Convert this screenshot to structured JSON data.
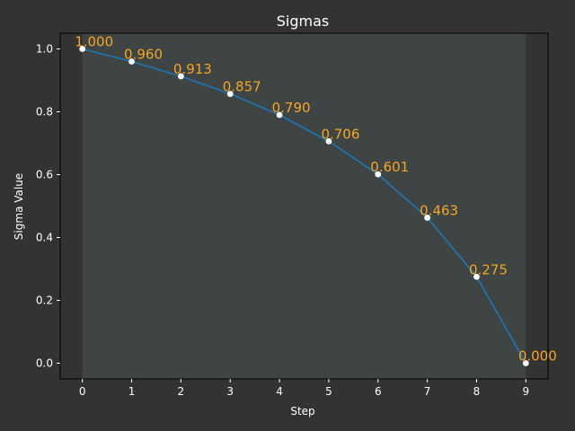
{
  "chart_data": {
    "type": "line",
    "title": "Sigmas",
    "xlabel": "Step",
    "ylabel": "Sigma Value",
    "x": [
      0,
      1,
      2,
      3,
      4,
      5,
      6,
      7,
      8,
      9
    ],
    "x_ticks": [
      "0",
      "1",
      "2",
      "3",
      "4",
      "5",
      "6",
      "7",
      "8",
      "9"
    ],
    "y_ticks": [
      "0.0",
      "0.2",
      "0.4",
      "0.6",
      "0.8",
      "1.0"
    ],
    "y_tick_values": [
      0,
      0.2,
      0.4,
      0.6,
      0.8,
      1.0
    ],
    "series": [
      {
        "values": [
          1.0,
          0.96,
          0.913,
          0.857,
          0.79,
          0.706,
          0.601,
          0.463,
          0.275,
          0.0
        ],
        "labels": [
          "1.000",
          "0.960",
          "0.913",
          "0.857",
          "0.790",
          "0.706",
          "0.601",
          "0.463",
          "0.275",
          "0.000"
        ]
      }
    ],
    "xlim": [
      -0.45,
      9.45
    ],
    "ylim": [
      -0.05,
      1.05
    ],
    "grid": false,
    "shaded_x_range": [
      0,
      9
    ],
    "colors": {
      "background": "#333333",
      "shade": "#3f4444",
      "line": "#1f77b4",
      "marker": "#ffffff",
      "label": "#f5a623",
      "text": "#ffffff"
    }
  }
}
